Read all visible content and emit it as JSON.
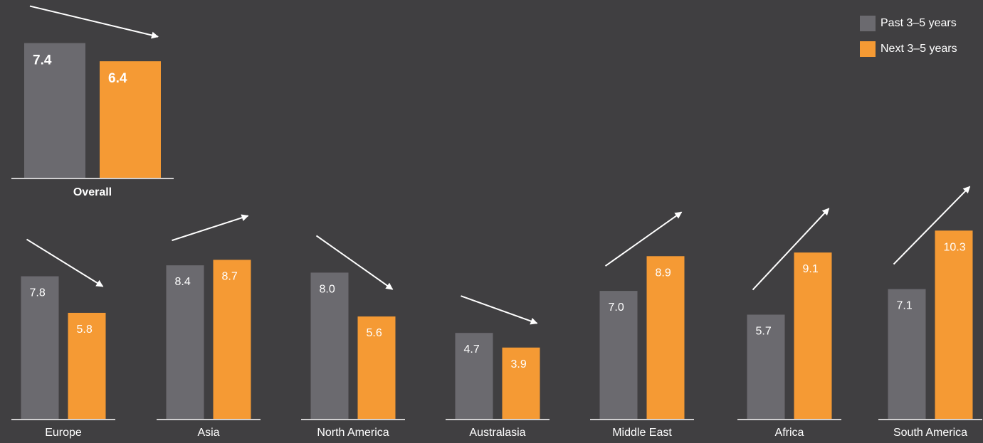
{
  "colors": {
    "background": "#403f41",
    "past": "#6b6a6f",
    "next": "#f59a34",
    "text": "#ffffff",
    "baseline": "#ffffff"
  },
  "legend": {
    "past_label": "Past 3–5 years",
    "next_label": "Next 3–5 years"
  },
  "chart_data": [
    {
      "type": "bar",
      "title": "Overall",
      "categories": [
        "Overall"
      ],
      "series": [
        {
          "name": "Past 3–5 years",
          "values": [
            7.4
          ]
        },
        {
          "name": "Next 3–5 years",
          "values": [
            6.4
          ]
        }
      ],
      "value_labels": [
        "7.4",
        "6.4"
      ],
      "trend": "down"
    },
    {
      "type": "bar",
      "categories": [
        "Europe",
        "Asia",
        "North America",
        "Australasia",
        "Middle East",
        "Africa",
        "South America"
      ],
      "series": [
        {
          "name": "Past 3–5 years",
          "values": [
            7.8,
            8.4,
            8.0,
            4.7,
            7.0,
            5.7,
            7.1
          ]
        },
        {
          "name": "Next 3–5 years",
          "values": [
            5.8,
            8.7,
            5.6,
            3.9,
            8.9,
            9.1,
            10.3
          ]
        }
      ],
      "past_labels": [
        "7.8",
        "8.4",
        "8.0",
        "4.7",
        "7.0",
        "5.7",
        "7.1"
      ],
      "next_labels": [
        "5.8",
        "8.7",
        "5.6",
        "3.9",
        "8.9",
        "9.1",
        "10.3"
      ],
      "trends": [
        "down",
        "up",
        "down",
        "down",
        "up",
        "up",
        "up"
      ]
    }
  ]
}
